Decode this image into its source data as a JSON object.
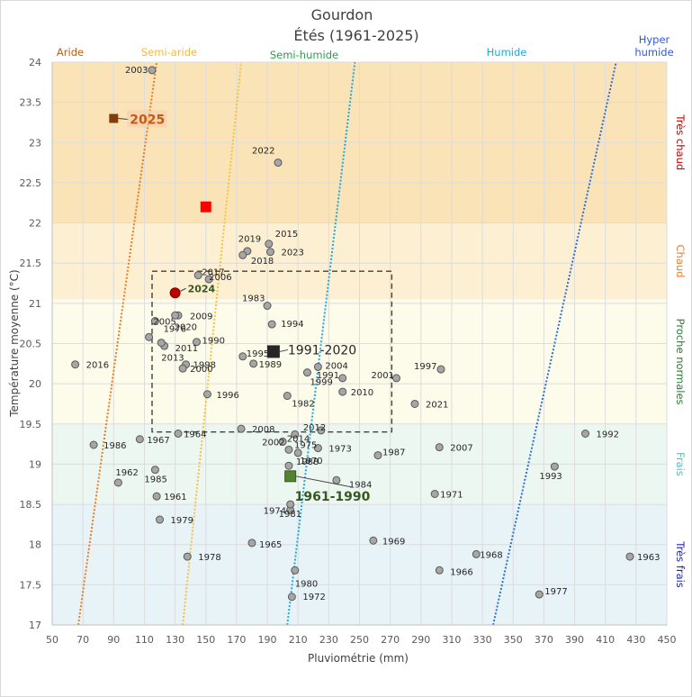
{
  "title": "Gourdon",
  "subtitle": "Étés (1961-2025)",
  "chart_data": {
    "type": "scatter",
    "title": "Gourdon",
    "subtitle": "Étés (1961-2025)",
    "xlabel": "Pluviométrie  (mm)",
    "ylabel": "Température moyenne (°C)",
    "xlim": [
      50,
      450
    ],
    "ylim": [
      17,
      24
    ],
    "x_ticks": [
      50,
      70,
      90,
      110,
      130,
      150,
      170,
      190,
      210,
      230,
      250,
      270,
      290,
      310,
      330,
      350,
      370,
      390,
      410,
      430,
      450
    ],
    "y_ticks": [
      17,
      17.5,
      18,
      18.5,
      19,
      19.5,
      20,
      20.5,
      21,
      21.5,
      22,
      22.5,
      23,
      23.5,
      24
    ],
    "temperature_bands": [
      {
        "label": "Très chaud",
        "from": 22,
        "to": 24,
        "color": "#c00000",
        "fill": "#fbe3b8"
      },
      {
        "label": "Chaud",
        "from": 21.05,
        "to": 22,
        "color": "#ed7d31",
        "fill": "#fdf0d2"
      },
      {
        "label": "Proche normales",
        "from": 19.5,
        "to": 21.05,
        "color": "#2e7d32",
        "fill": "#fdfbea"
      },
      {
        "label": "Frais",
        "from": 18.5,
        "to": 19.5,
        "color": "#4fc3c0",
        "fill": "#edf7f2"
      },
      {
        "label": "Très frais",
        "from": 17,
        "to": 18.5,
        "color": "#2020c0",
        "fill": "#e8f3f8"
      }
    ],
    "climate_zones": [
      {
        "label": "Aride",
        "color": "#c55a11"
      },
      {
        "label": "Semi-aride",
        "color": "#f4b942"
      },
      {
        "label": "Semi-humide",
        "color": "#2e9d4c"
      },
      {
        "label": "Humide",
        "color": "#1eaadc"
      },
      {
        "label": "Hyper humide",
        "color": "#2e5bd8"
      }
    ],
    "boundary_lines": [
      {
        "name": "aride/semi-aride",
        "color": "#e67e22",
        "points": [
          [
            67,
            17
          ],
          [
            118,
            24
          ]
        ]
      },
      {
        "name": "semi-aride/semi-humide",
        "color": "#f5c242",
        "points": [
          [
            135,
            17
          ],
          [
            173,
            24
          ]
        ]
      },
      {
        "name": "semi-humide/humide",
        "color": "#1eaadc",
        "points": [
          [
            203,
            17
          ],
          [
            247,
            24
          ]
        ]
      },
      {
        "name": "humide/hyper humide",
        "color": "#2e6fd8",
        "points": [
          [
            337,
            17
          ],
          [
            417,
            24
          ]
        ]
      }
    ],
    "reference_box": {
      "x": [
        115,
        271
      ],
      "y": [
        19.4,
        21.4
      ]
    },
    "points": [
      {
        "year": "1961",
        "x": 118,
        "y": 18.6
      },
      {
        "year": "1962",
        "x": 93,
        "y": 18.77
      },
      {
        "year": "1963",
        "x": 426,
        "y": 17.85
      },
      {
        "year": "1964",
        "x": 132,
        "y": 19.38
      },
      {
        "year": "1965",
        "x": 180,
        "y": 18.02
      },
      {
        "year": "1966",
        "x": 302,
        "y": 17.68
      },
      {
        "year": "1967",
        "x": 107,
        "y": 19.31
      },
      {
        "year": "1968",
        "x": 326,
        "y": 17.88
      },
      {
        "year": "1969",
        "x": 259,
        "y": 18.05
      },
      {
        "year": "1970",
        "x": 210,
        "y": 19.14
      },
      {
        "year": "1971",
        "x": 299,
        "y": 18.63
      },
      {
        "year": "1972",
        "x": 206,
        "y": 17.35
      },
      {
        "year": "1973",
        "x": 223,
        "y": 19.2
      },
      {
        "year": "1974",
        "x": 205,
        "y": 18.43
      },
      {
        "year": "1975",
        "x": 204,
        "y": 19.18
      },
      {
        "year": "1976",
        "x": 113,
        "y": 20.58
      },
      {
        "year": "1977",
        "x": 367,
        "y": 17.38
      },
      {
        "year": "1978",
        "x": 138,
        "y": 17.85
      },
      {
        "year": "1979",
        "x": 120,
        "y": 18.31
      },
      {
        "year": "1980",
        "x": 208,
        "y": 17.68
      },
      {
        "year": "1981",
        "x": 205,
        "y": 18.5
      },
      {
        "year": "1982",
        "x": 203,
        "y": 19.85
      },
      {
        "year": "1983",
        "x": 190,
        "y": 20.97
      },
      {
        "year": "1984",
        "x": 235,
        "y": 18.8
      },
      {
        "year": "1985",
        "x": 117,
        "y": 18.93
      },
      {
        "year": "1986",
        "x": 77,
        "y": 19.24
      },
      {
        "year": "1987",
        "x": 262,
        "y": 19.11
      },
      {
        "year": "1988",
        "x": 204,
        "y": 18.98
      },
      {
        "year": "1989",
        "x": 181,
        "y": 20.25
      },
      {
        "year": "1990",
        "x": 144,
        "y": 20.52
      },
      {
        "year": "1991",
        "x": 239,
        "y": 20.07
      },
      {
        "year": "1992",
        "x": 397,
        "y": 19.38
      },
      {
        "year": "1993",
        "x": 377,
        "y": 18.97
      },
      {
        "year": "1994",
        "x": 193,
        "y": 20.74
      },
      {
        "year": "1995",
        "x": 174,
        "y": 20.34
      },
      {
        "year": "1996",
        "x": 151,
        "y": 19.87
      },
      {
        "year": "1997",
        "x": 303,
        "y": 20.18
      },
      {
        "year": "1998",
        "x": 137,
        "y": 20.24
      },
      {
        "year": "1999",
        "x": 216,
        "y": 20.14
      },
      {
        "year": "2000",
        "x": 135,
        "y": 20.19
      },
      {
        "year": "2001",
        "x": 274,
        "y": 20.07
      },
      {
        "year": "2002",
        "x": 200,
        "y": 19.28
      },
      {
        "year": "2003",
        "x": 115,
        "y": 23.9
      },
      {
        "year": "2004",
        "x": 223,
        "y": 20.21
      },
      {
        "year": "2005",
        "x": 117,
        "y": 20.78
      },
      {
        "year": "2006",
        "x": 152,
        "y": 21.3
      },
      {
        "year": "2007",
        "x": 302,
        "y": 19.21
      },
      {
        "year": "2008",
        "x": 173,
        "y": 19.44
      },
      {
        "year": "2009",
        "x": 132,
        "y": 20.85
      },
      {
        "year": "2010",
        "x": 239,
        "y": 19.9
      },
      {
        "year": "2011",
        "x": 123,
        "y": 20.47
      },
      {
        "year": "2012",
        "x": 225,
        "y": 19.42
      },
      {
        "year": "2013",
        "x": 121,
        "y": 20.51
      },
      {
        "year": "2014",
        "x": 208,
        "y": 19.37
      },
      {
        "year": "2015",
        "x": 191,
        "y": 21.74
      },
      {
        "year": "2016",
        "x": 65,
        "y": 20.24
      },
      {
        "year": "2017",
        "x": 145,
        "y": 21.35
      },
      {
        "year": "2018",
        "x": 177,
        "y": 21.65
      },
      {
        "year": "2019",
        "x": 174,
        "y": 21.6
      },
      {
        "year": "2020",
        "x": 130,
        "y": 20.85
      },
      {
        "year": "2021",
        "x": 286,
        "y": 19.75
      },
      {
        "year": "2022",
        "x": 197,
        "y": 22.75
      },
      {
        "year": "2023",
        "x": 192,
        "y": 21.64
      },
      {
        "year": "2024",
        "x": 130,
        "y": 21.13,
        "highlight": "#c00000"
      }
    ],
    "special_points": [
      {
        "label": "2025",
        "x": 90,
        "y": 23.3,
        "color": "#843c0c",
        "label_color": "#c55a11"
      },
      {
        "label": "",
        "x": 150,
        "y": 22.2,
        "color": "#ff0000",
        "label_color": "#ff0000"
      },
      {
        "label": "1991-2020",
        "x": 194,
        "y": 20.4,
        "color": "#262626",
        "label_color": "#262626"
      },
      {
        "label": "1961-1990",
        "x": 205,
        "y": 18.85,
        "color": "#548235",
        "label_color": "#385723"
      }
    ]
  }
}
